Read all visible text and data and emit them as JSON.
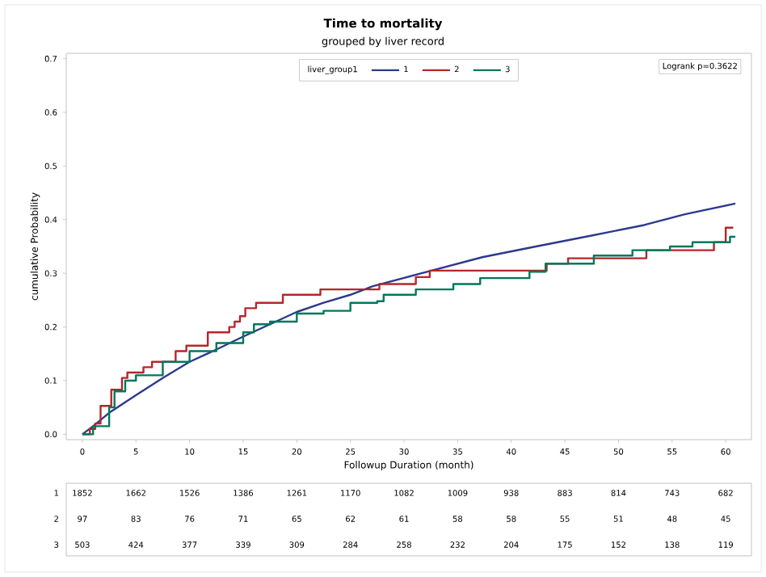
{
  "chart_data": {
    "type": "step",
    "title": "Time to mortality",
    "subtitle": "grouped by liver record",
    "xlabel": "Followup Duration (month)",
    "ylabel": "cumulative Probability",
    "legend_title": "liver_group1",
    "legend": "top",
    "grid": false,
    "marker": "none",
    "line_style": "solid",
    "xlim": [
      -1.5,
      62.4
    ],
    "xticks": [
      0,
      5,
      10,
      15,
      20,
      25,
      30,
      35,
      40,
      45,
      50,
      55,
      60
    ],
    "ylim": [
      -0.01,
      0.71
    ],
    "yticks": [
      {
        "value": 0,
        "label": "0.0"
      },
      {
        "value": 0.1,
        "label": "0.1"
      },
      {
        "value": 0.2,
        "label": "0.2"
      },
      {
        "value": 0.3,
        "label": "0.3"
      },
      {
        "value": 0.4,
        "label": "0.4"
      },
      {
        "value": 0.5,
        "label": "0.5"
      },
      {
        "value": 0.6,
        "label": "0.6"
      },
      {
        "value": 0.7,
        "label": "0.7"
      }
    ],
    "series": [
      {
        "name": "1",
        "type": "line",
        "color": "#2b3a8c",
        "x": [
          0,
          1,
          2.5,
          5,
          7.5,
          10,
          12.5,
          15,
          17.5,
          20,
          22.5,
          25,
          27.1,
          32.2,
          37.3,
          42.3,
          47.4,
          52.4,
          56.2,
          60.9
        ],
        "values": [
          0,
          0.015,
          0.04,
          0.073,
          0.105,
          0.135,
          0.158,
          0.182,
          0.205,
          0.228,
          0.245,
          0.26,
          0.276,
          0.303,
          0.33,
          0.35,
          0.37,
          0.39,
          0.41,
          0.43
        ]
      },
      {
        "name": "2",
        "color": "#b5262b",
        "x": [
          0,
          0.7,
          1.2,
          1.7,
          2.7,
          3.7,
          4.2,
          5.7,
          6.5,
          8.7,
          9.7,
          11.7,
          13.7,
          14.2,
          14.7,
          15.2,
          16.2,
          18.7,
          22.2,
          27.7,
          31.1,
          32.4,
          43.3,
          45.3,
          52.6,
          58.9,
          60.0,
          60.7
        ],
        "values": [
          0,
          0.01,
          0.02,
          0.053,
          0.083,
          0.105,
          0.115,
          0.125,
          0.135,
          0.155,
          0.165,
          0.19,
          0.2,
          0.21,
          0.22,
          0.235,
          0.245,
          0.26,
          0.27,
          0.28,
          0.293,
          0.305,
          0.318,
          0.328,
          0.343,
          0.358,
          0.385,
          0.385
        ]
      },
      {
        "name": "3",
        "color": "#00775c",
        "x": [
          0,
          1,
          2.5,
          3,
          4,
          5,
          7.5,
          10,
          12.5,
          15,
          16,
          17.5,
          20,
          22.5,
          25,
          27.5,
          28.1,
          31.1,
          34.6,
          37.1,
          41.7,
          43.2,
          47.7,
          51.3,
          54.8,
          56.9,
          60.4,
          60.9
        ],
        "values": [
          0,
          0.015,
          0.05,
          0.08,
          0.1,
          0.11,
          0.135,
          0.155,
          0.17,
          0.19,
          0.205,
          0.21,
          0.225,
          0.23,
          0.245,
          0.248,
          0.26,
          0.27,
          0.28,
          0.291,
          0.303,
          0.318,
          0.333,
          0.343,
          0.35,
          0.358,
          0.368,
          0.368
        ]
      }
    ],
    "annotations": [
      "Logrank p=0.3622",
      "1",
      "1852",
      "1662",
      "1526",
      "1386",
      "1261",
      "1170",
      "1082",
      "1009",
      "938",
      "883",
      "814",
      "743",
      "682",
      "2",
      "97",
      "83",
      "76",
      "71",
      "65",
      "62",
      "61",
      "58",
      "58",
      "55",
      "51",
      "48",
      "45",
      "3",
      "503",
      "424",
      "377",
      "339",
      "309",
      "284",
      "258",
      "232",
      "204",
      "175",
      "152",
      "138",
      "119"
    ]
  }
}
